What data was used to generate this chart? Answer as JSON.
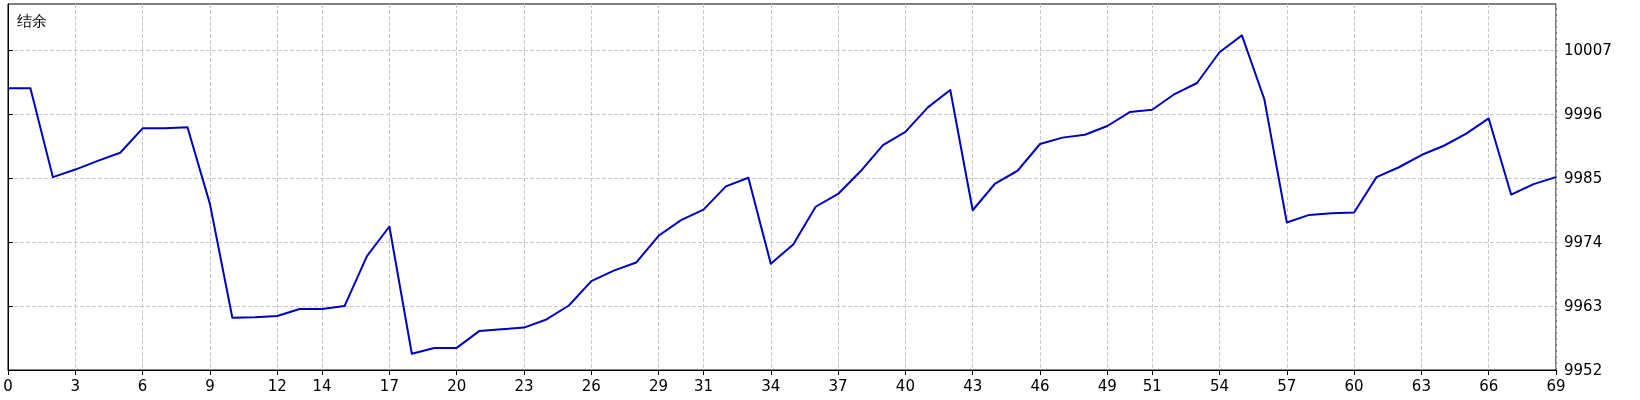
{
  "chart_data": {
    "type": "line",
    "title": "结余",
    "x": [
      0,
      1,
      2,
      3,
      4,
      5,
      6,
      7,
      8,
      9,
      10,
      11,
      12,
      13,
      14,
      15,
      16,
      17,
      18,
      19,
      20,
      21,
      22,
      23,
      24,
      25,
      26,
      27,
      28,
      29,
      30,
      31,
      32,
      33,
      34,
      35,
      36,
      37,
      38,
      39,
      40,
      41,
      42,
      43,
      44,
      45,
      46,
      47,
      48,
      49,
      50,
      51,
      52,
      53,
      54,
      55,
      56,
      57,
      58,
      59,
      60,
      61,
      62,
      63,
      64,
      65,
      66,
      67,
      68,
      69
    ],
    "series": [
      {
        "color": "#0000c0",
        "values": [
          10000.5,
          10000.5,
          9985.2,
          9986.5,
          9988.0,
          9989.4,
          9993.6,
          9993.6,
          9993.8,
          9980.6,
          9961.0,
          9961.1,
          9961.3,
          9962.5,
          9962.5,
          9963.0,
          9971.6,
          9976.7,
          9954.8,
          9955.8,
          9955.8,
          9958.7,
          9959.0,
          9959.3,
          9960.7,
          9963.1,
          9967.3,
          9969.1,
          9970.5,
          9975.1,
          9977.8,
          9979.6,
          9983.6,
          9985.1,
          9970.3,
          9973.6,
          9980.1,
          9982.3,
          9986.2,
          9990.7,
          9993.0,
          9997.2,
          10000.2,
          9979.5,
          9984.1,
          9986.3,
          9990.9,
          9992.0,
          9992.5,
          9994.0,
          9996.4,
          9996.8,
          9999.5,
          10001.4,
          10006.7,
          10009.6,
          9998.6,
          9977.4,
          9978.7,
          9979.0,
          9979.1,
          9985.2,
          9986.9,
          9989.0,
          9990.6,
          9992.7,
          9995.3,
          9982.2,
          9984.0,
          9985.2
        ]
      }
    ],
    "xlim": [
      0,
      69
    ],
    "xticks": [
      0,
      3,
      6,
      9,
      12,
      14,
      17,
      20,
      23,
      26,
      29,
      31,
      34,
      37,
      40,
      43,
      46,
      49,
      51,
      54,
      57,
      60,
      63,
      66,
      69
    ],
    "ylim": [
      9952,
      10015
    ],
    "yticks": [
      9952,
      9963,
      9974,
      9985,
      9996,
      10007
    ],
    "grid": true,
    "marker": "none",
    "line_style": "solid"
  }
}
